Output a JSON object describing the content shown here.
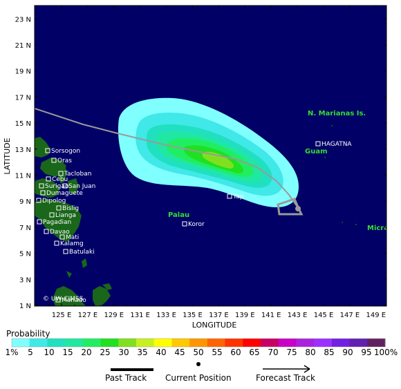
{
  "map": {
    "x_axis_title": "LONGITUDE",
    "y_axis_title": "LATITUDE",
    "lon_ticks": [
      "125 E",
      "127 E",
      "129 E",
      "131 E",
      "133 E",
      "135 E",
      "137 E",
      "139 E",
      "141 E",
      "143 E",
      "145 E",
      "147 E",
      "149 E"
    ],
    "lat_ticks": [
      "1 N",
      "3 N",
      "5 N",
      "7 N",
      "9 N",
      "11 N",
      "13 N",
      "15 N",
      "17 N",
      "19 N",
      "21 N",
      "23 N"
    ],
    "ocean_color": "#000066",
    "land_color": "#1a661a",
    "places": [
      {
        "name": "Sorsogon"
      },
      {
        "name": "Oras"
      },
      {
        "name": "Tacloban"
      },
      {
        "name": "Cebu"
      },
      {
        "name": "Surigao"
      },
      {
        "name": "San Juan"
      },
      {
        "name": "Dumaguete"
      },
      {
        "name": "Dipolog"
      },
      {
        "name": "Bislig"
      },
      {
        "name": "Lianga"
      },
      {
        "name": "Pagadian"
      },
      {
        "name": "Davao"
      },
      {
        "name": "Mati"
      },
      {
        "name": "Kalamg"
      },
      {
        "name": "Batulaki"
      },
      {
        "name": "Manado"
      },
      {
        "name": "HAGATNA"
      },
      {
        "name": "Yap"
      },
      {
        "name": "Koror"
      }
    ],
    "regions": [
      {
        "name": "N. Marianas Is."
      },
      {
        "name": "Guam"
      },
      {
        "name": "Palau"
      },
      {
        "name": "Micro"
      }
    ],
    "watermark": "© UW-CIMSS"
  },
  "legend": {
    "title": "Probability",
    "labels": [
      "1%",
      "5",
      "10",
      "15",
      "20",
      "25",
      "30",
      "35",
      "40",
      "45",
      "50",
      "55",
      "60",
      "65",
      "70",
      "75",
      "80",
      "85",
      "90",
      "95",
      "100%"
    ],
    "colors": [
      "#80ffff",
      "#40e8e8",
      "#20e0c0",
      "#20e8a0",
      "#20ee60",
      "#20e020",
      "#80e020",
      "#c8f020",
      "#ffff00",
      "#ffc800",
      "#ff9600",
      "#ff6400",
      "#ff3200",
      "#ff0000",
      "#c80064",
      "#c800c8",
      "#aa22dd",
      "#9b30ff",
      "#7020e0",
      "#6020b0",
      "#602060"
    ]
  },
  "tracks": {
    "past_label": "Past Track",
    "current_label": "Current Position",
    "forecast_label": "Forecast Track"
  }
}
